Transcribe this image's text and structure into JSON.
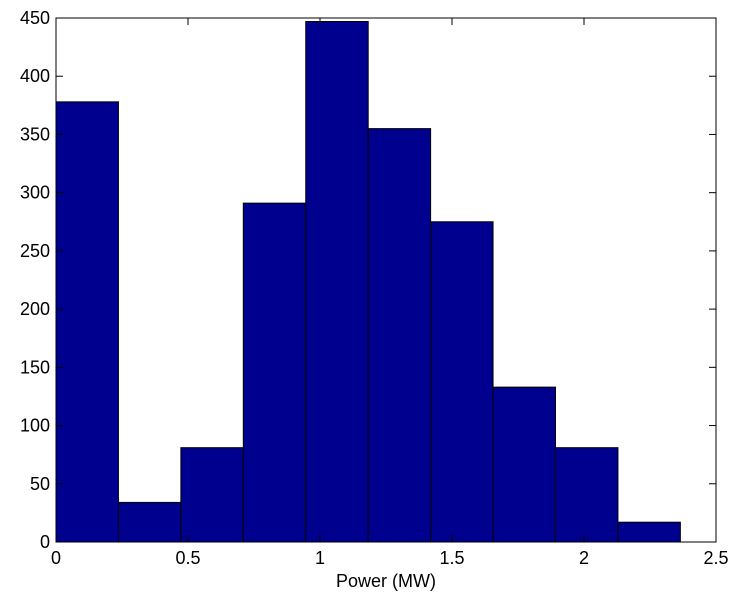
{
  "chart_data": {
    "type": "bar",
    "subtype": "histogram",
    "title": "",
    "xlabel": "Power (MW)",
    "ylabel": "",
    "xlim": [
      0,
      2.5
    ],
    "ylim": [
      0,
      450
    ],
    "xticks": [
      0,
      0.5,
      1,
      1.5,
      2,
      2.5
    ],
    "xtick_labels": [
      "0",
      "0.5",
      "1",
      "1.5",
      "2",
      "2.5"
    ],
    "yticks": [
      0,
      50,
      100,
      150,
      200,
      250,
      300,
      350,
      400,
      450
    ],
    "ytick_labels": [
      "0",
      "50",
      "100",
      "150",
      "200",
      "250",
      "300",
      "350",
      "400",
      "450"
    ],
    "grid": false,
    "bin_edges": [
      0,
      0.2365,
      0.473,
      0.7095,
      0.946,
      1.1825,
      1.419,
      1.6555,
      1.892,
      2.1285,
      2.365
    ],
    "values": [
      378,
      34,
      81,
      291,
      447,
      355,
      275,
      133,
      81,
      17
    ],
    "bar_color": "#00008f",
    "edge_color": "#000000"
  }
}
